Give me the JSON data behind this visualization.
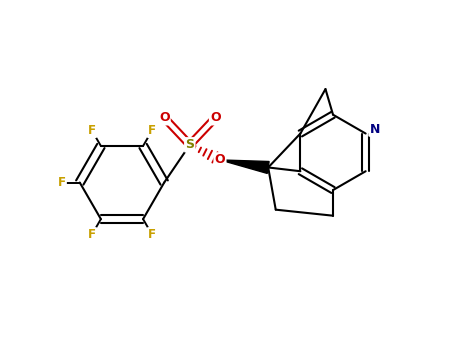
{
  "background_color": "#ffffff",
  "bond_color": "#000000",
  "atom_colors": {
    "F": "#c8a000",
    "O": "#cc0000",
    "S": "#808000",
    "N": "#000080",
    "C": "#000000"
  },
  "figsize": [
    4.55,
    3.5
  ],
  "dpi": 100,
  "xlim": [
    -1.5,
    1.5
  ],
  "ylim": [
    -1.1,
    1.1
  ]
}
